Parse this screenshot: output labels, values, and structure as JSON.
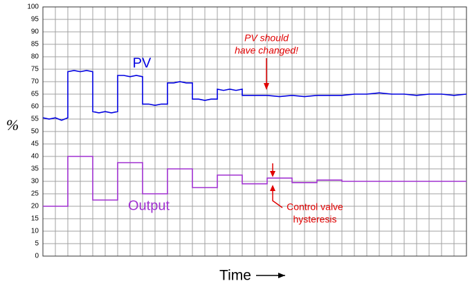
{
  "chart_data": {
    "type": "line",
    "ylim": [
      0,
      100
    ],
    "yticks": [
      0,
      5,
      10,
      15,
      20,
      25,
      30,
      35,
      40,
      45,
      50,
      55,
      60,
      65,
      70,
      75,
      80,
      85,
      90,
      95,
      100
    ],
    "xlim": [
      0,
      34
    ],
    "grid": true,
    "ylabel": "%",
    "xlabel": "Time",
    "series": [
      {
        "name": "PV",
        "color": "#0000e0",
        "x": [
          0,
          0.5,
          1,
          1.5,
          2,
          2,
          2.5,
          3,
          3.5,
          4,
          4,
          4.5,
          5,
          5.5,
          6,
          6,
          6.5,
          7,
          7.5,
          8,
          8,
          8.5,
          9,
          9.5,
          10,
          10,
          10.5,
          11,
          11.5,
          12,
          12,
          12.5,
          13,
          13.5,
          14,
          14,
          14.5,
          15,
          15.5,
          16,
          16,
          17,
          18,
          19,
          20,
          21,
          22,
          23,
          24,
          25,
          26,
          27,
          28,
          29,
          30,
          31,
          32,
          33,
          34
        ],
        "values": [
          55.5,
          55,
          55.5,
          54.5,
          55.5,
          74,
          74.5,
          74,
          74.5,
          74,
          58,
          57.5,
          58,
          57.5,
          58,
          72.5,
          72.5,
          72,
          72.5,
          72,
          61,
          61,
          60.5,
          61,
          61,
          69.5,
          69.5,
          70,
          69.5,
          69.5,
          63,
          63,
          62.5,
          63,
          63,
          67,
          66.5,
          67,
          66.5,
          67,
          64.5,
          64.5,
          64.5,
          64,
          64.5,
          64,
          64.5,
          64.5,
          64.5,
          65,
          65,
          65.5,
          65,
          65,
          64.5,
          65,
          65,
          64.5,
          65
        ]
      },
      {
        "name": "Output",
        "color": "#a030d0",
        "x": [
          0,
          2,
          2,
          4,
          4,
          6,
          6,
          8,
          8,
          10,
          10,
          12,
          12,
          14,
          14,
          16,
          16,
          18,
          18,
          20,
          20,
          22,
          22,
          24,
          24,
          34
        ],
        "values": [
          20,
          20,
          40,
          40,
          22.5,
          22.5,
          37.5,
          37.5,
          25,
          25,
          35,
          35,
          27.5,
          27.5,
          32.5,
          32.5,
          29,
          29,
          31.3,
          31.3,
          29.5,
          29.5,
          30.5,
          30.5,
          30,
          30
        ]
      }
    ],
    "annotations": [
      {
        "lines": [
          "PV should",
          "have changed!"
        ]
      },
      {
        "lines": [
          "Control valve",
          "hysteresis"
        ]
      }
    ]
  }
}
